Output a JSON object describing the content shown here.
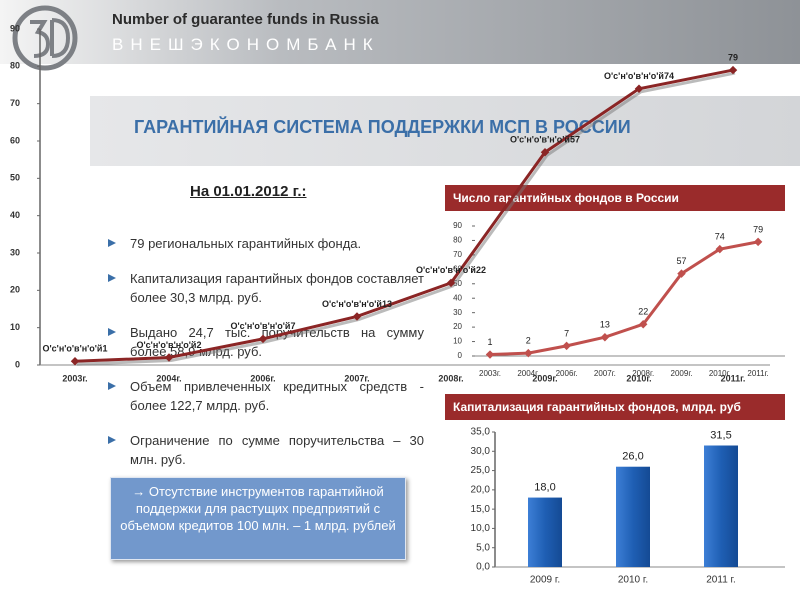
{
  "header": {
    "title_en": "Number of guarantee funds in Russia",
    "brand": "ВНЕШЭКОНОМБАНК",
    "slide_title": "ГАРАНТИЙНАЯ СИСТЕМА ПОДДЕРЖКИ МСП В РОССИИ"
  },
  "text": {
    "date_heading": "На 01.01.2012 г.:",
    "bullets": [
      "79 региональных гарантийных фонда.",
      "Капитализация гарантийных фондов составляет более 30,3 млрд. руб.",
      "Выдано 24,7 тыс. поручительств на сумму более 58,9 млрд. руб.",
      "Объем привлеченных кредитных средств - более 122,7 млрд. руб.",
      "Ограничение по сумме поручительства – 30 млн. руб."
    ],
    "note": "→ Отсутствие инструментов гарантийной поддержки для растущих предприятий с объемом кредитов 100 млн. – 1 млрд. рублей"
  },
  "chart_data": [
    {
      "type": "line",
      "categories": [
        "2003г.",
        "2004г.",
        "2006г.",
        "2007г.",
        "2008г.",
        "2009г.",
        "2010г.",
        "2011г."
      ],
      "values": [
        1,
        2,
        7,
        13,
        22,
        57,
        74,
        79
      ],
      "value_labels": [
        "О'с'н'о'в'н'о'й1",
        "О'с'н'о'в'н'о'й2",
        "О'с'н'о'в'н'о'й7",
        "О'с'н'о'в'н'о'й13",
        "О'с'н'о'в'н'о'й22",
        "О'с'н'о'в'н'о'й57",
        "О'с'н'о'в'н'о'й74",
        "79"
      ],
      "color": "#8b2525",
      "ylim": [
        0,
        90
      ],
      "yticks": [
        0,
        10,
        20,
        30,
        40,
        50,
        60,
        70,
        80,
        90
      ]
    },
    {
      "type": "line",
      "title": "Число гарантийных фондов в России",
      "categories": [
        "2003г.",
        "2004г.",
        "2006г.",
        "2007г.",
        "2008г.",
        "2009г.",
        "2010г.",
        "2011г."
      ],
      "values": [
        1,
        2,
        7,
        13,
        22,
        57,
        74,
        79
      ],
      "color": "#c0504d",
      "ylim": [
        0,
        90
      ],
      "yticks": [
        0,
        10,
        20,
        30,
        40,
        50,
        60,
        70,
        80,
        90
      ]
    },
    {
      "type": "bar",
      "title": "Капитализация гарантийных фондов, млрд. руб",
      "categories": [
        "2009 г.",
        "2010 г.",
        "2011 г."
      ],
      "values": [
        18,
        26,
        31.5
      ],
      "value_labels": [
        "18,0",
        "26,0",
        "31,5"
      ],
      "color": "#1f5fb4",
      "ylim": [
        0,
        35
      ],
      "yticks": [
        {
          "value": 0,
          "label": "0,0"
        },
        {
          "value": 5,
          "label": "5,0"
        },
        {
          "value": 10,
          "label": "10,0"
        },
        {
          "value": 15,
          "label": "15,0"
        },
        {
          "value": 20,
          "label": "20,0"
        },
        {
          "value": 25,
          "label": "25,0"
        },
        {
          "value": 30,
          "label": "30,0"
        },
        {
          "value": 35,
          "label": "35,0"
        }
      ]
    }
  ]
}
